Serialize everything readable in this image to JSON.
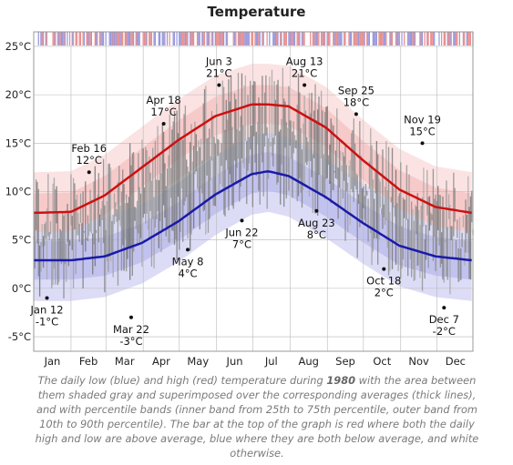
{
  "chart_data": {
    "type": "line",
    "title": "Temperature",
    "ylim": [
      -6.5,
      26.5
    ],
    "y_ticks": [
      -5,
      0,
      5,
      10,
      15,
      20,
      25
    ],
    "y_tick_labels": [
      "-5°C",
      "0°C",
      "5°C",
      "10°C",
      "15°C",
      "20°C",
      "25°C"
    ],
    "months": [
      "Jan",
      "Feb",
      "Mar",
      "Apr",
      "May",
      "Jun",
      "Jul",
      "Aug",
      "Sep",
      "Oct",
      "Nov",
      "Dec"
    ],
    "colors": {
      "high": "#cc1111",
      "low": "#1a1aaa",
      "daily_bar": "#8a8a8a",
      "grid": "#b8b8b8",
      "frame": "#999999"
    },
    "series": [
      {
        "name": "high",
        "x": [
          1,
          32,
          60,
          91,
          121,
          152,
          182,
          196,
          213,
          244,
          274,
          305,
          335,
          365
        ],
        "values": [
          7.8,
          7.9,
          9.6,
          12.5,
          15.3,
          17.8,
          19.0,
          19.0,
          18.8,
          16.6,
          13.3,
          10.2,
          8.4,
          7.8
        ]
      },
      {
        "name": "low",
        "x": [
          1,
          32,
          60,
          91,
          121,
          152,
          182,
          196,
          213,
          244,
          274,
          305,
          335,
          365
        ],
        "values": [
          2.9,
          2.9,
          3.3,
          4.7,
          6.9,
          9.7,
          11.8,
          12.1,
          11.6,
          9.4,
          6.8,
          4.4,
          3.3,
          2.9
        ]
      }
    ],
    "annotations": [
      {
        "date": "Jan 12",
        "value": "-1°C",
        "x": 12,
        "y": -1
      },
      {
        "date": "Feb 16",
        "value": "12°C",
        "x": 47,
        "y": 12
      },
      {
        "date": "Mar 22",
        "value": "-3°C",
        "x": 82,
        "y": -3
      },
      {
        "date": "Apr 18",
        "value": "17°C",
        "x": 109,
        "y": 17
      },
      {
        "date": "May 8",
        "value": "4°C",
        "x": 129,
        "y": 4
      },
      {
        "date": "Jun 3",
        "value": "21°C",
        "x": 155,
        "y": 21
      },
      {
        "date": "Jun 22",
        "value": "7°C",
        "x": 174,
        "y": 7
      },
      {
        "date": "Aug 13",
        "value": "21°C",
        "x": 226,
        "y": 21
      },
      {
        "date": "Aug 23",
        "value": "8°C",
        "x": 236,
        "y": 8
      },
      {
        "date": "Sep 25",
        "value": "18°C",
        "x": 269,
        "y": 18
      },
      {
        "date": "Oct 18",
        "value": "2°C",
        "x": 292,
        "y": 2
      },
      {
        "date": "Nov 19",
        "value": "15°C",
        "x": 324,
        "y": 15
      },
      {
        "date": "Dec 7",
        "value": "-2°C",
        "x": 342,
        "y": -2
      }
    ],
    "caption_parts": [
      "The daily low (blue) and high (red) temperature during ",
      "1980",
      " with the area between them shaded gray and superimposed over the corresponding averages (thick lines), and with percentile bands (inner band from 25th to 75th percentile, outer band from 10th to 90th percentile). The bar at the top of the graph is red where both the daily high and low are above average, blue where they are both below average, and white otherwise."
    ]
  }
}
